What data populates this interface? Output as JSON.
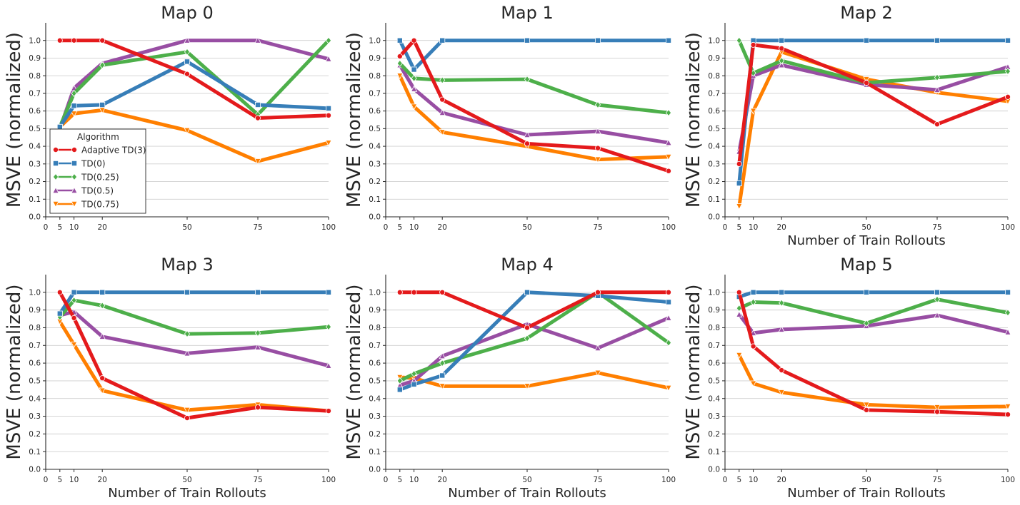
{
  "colors": {
    "Adaptive TD(3)": "#e41a1c",
    "TD(0)": "#377eb8",
    "TD(0.25)": "#4daf4a",
    "TD(0.5)": "#984ea3",
    "TD(0.75)": "#ff7f00"
  },
  "markers": {
    "Adaptive TD(3)": "circle",
    "TD(0)": "square",
    "TD(0.25)": "diamond",
    "TD(0.5)": "triangle-up",
    "TD(0.75)": "triangle-down"
  },
  "legend": {
    "title": "Algorithm",
    "entries": [
      "Adaptive TD(3)",
      "TD(0)",
      "TD(0.25)",
      "TD(0.5)",
      "TD(0.75)"
    ],
    "placement": "lower-left of Map 0"
  },
  "chart_data": [
    {
      "type": "line",
      "title": "Map 0",
      "ylabel": "MSVE (normalized)",
      "xlabel": "",
      "x": [
        5,
        10,
        20,
        50,
        75,
        100
      ],
      "xticks": [
        0,
        5,
        10,
        20,
        50,
        75,
        100
      ],
      "yticks": [
        "0.0",
        "0.1",
        "0.2",
        "0.3",
        "0.4",
        "0.5",
        "0.6",
        "0.7",
        "0.8",
        "0.9",
        "1.0"
      ],
      "xlim": [
        0,
        100
      ],
      "ylim": [
        0,
        1.1
      ],
      "grid": "horizontal",
      "series": [
        {
          "name": "Adaptive TD(3)",
          "values": [
            1.0,
            1.0,
            1.0,
            0.81,
            0.56,
            0.575
          ]
        },
        {
          "name": "TD(0)",
          "values": [
            0.51,
            0.63,
            0.635,
            0.88,
            0.635,
            0.615
          ]
        },
        {
          "name": "TD(0.25)",
          "values": [
            0.51,
            0.7,
            0.86,
            0.935,
            0.58,
            1.0
          ]
        },
        {
          "name": "TD(0.5)",
          "values": [
            0.5,
            0.73,
            0.87,
            1.0,
            1.0,
            0.895
          ]
        },
        {
          "name": "TD(0.75)",
          "values": [
            0.51,
            0.585,
            0.605,
            0.49,
            0.315,
            0.42
          ]
        }
      ]
    },
    {
      "type": "line",
      "title": "Map 1",
      "ylabel": "MSVE (normalized)",
      "xlabel": "",
      "x": [
        5,
        10,
        20,
        50,
        75,
        100
      ],
      "xticks": [
        0,
        5,
        10,
        20,
        50,
        75,
        100
      ],
      "yticks": [
        "0.0",
        "0.1",
        "0.2",
        "0.3",
        "0.4",
        "0.5",
        "0.6",
        "0.7",
        "0.8",
        "0.9",
        "1.0"
      ],
      "xlim": [
        0,
        100
      ],
      "ylim": [
        0,
        1.1
      ],
      "grid": "horizontal",
      "series": [
        {
          "name": "Adaptive TD(3)",
          "values": [
            0.91,
            1.0,
            0.665,
            0.415,
            0.39,
            0.26
          ]
        },
        {
          "name": "TD(0)",
          "values": [
            1.0,
            0.835,
            1.0,
            1.0,
            1.0,
            1.0
          ]
        },
        {
          "name": "TD(0.25)",
          "values": [
            0.87,
            0.785,
            0.775,
            0.78,
            0.635,
            0.59
          ]
        },
        {
          "name": "TD(0.5)",
          "values": [
            0.86,
            0.725,
            0.59,
            0.465,
            0.485,
            0.42
          ]
        },
        {
          "name": "TD(0.75)",
          "values": [
            0.8,
            0.625,
            0.48,
            0.4,
            0.325,
            0.34
          ]
        }
      ]
    },
    {
      "type": "line",
      "title": "Map 2",
      "ylabel": "MSVE (normalized)",
      "xlabel": "Number of Train Rollouts",
      "x": [
        5,
        10,
        20,
        50,
        75,
        100
      ],
      "xticks": [
        0,
        5,
        10,
        20,
        50,
        75,
        100
      ],
      "yticks": [
        "0.0",
        "0.1",
        "0.2",
        "0.3",
        "0.4",
        "0.5",
        "0.6",
        "0.7",
        "0.8",
        "0.9",
        "1.0"
      ],
      "xlim": [
        0,
        100
      ],
      "ylim": [
        0,
        1.1
      ],
      "grid": "horizontal",
      "series": [
        {
          "name": "Adaptive TD(3)",
          "values": [
            0.3,
            0.975,
            0.955,
            0.76,
            0.525,
            0.68
          ]
        },
        {
          "name": "TD(0)",
          "values": [
            0.19,
            1.0,
            1.0,
            1.0,
            1.0,
            1.0
          ]
        },
        {
          "name": "TD(0.25)",
          "values": [
            1.0,
            0.815,
            0.885,
            0.76,
            0.79,
            0.825
          ]
        },
        {
          "name": "TD(0.5)",
          "values": [
            0.37,
            0.8,
            0.86,
            0.75,
            0.72,
            0.85
          ]
        },
        {
          "name": "TD(0.75)",
          "values": [
            0.06,
            0.6,
            0.935,
            0.78,
            0.705,
            0.655
          ]
        }
      ]
    },
    {
      "type": "line",
      "title": "Map 3",
      "ylabel": "MSVE (normalized)",
      "xlabel": "Number of Train Rollouts",
      "x": [
        5,
        10,
        20,
        50,
        75,
        100
      ],
      "xticks": [
        0,
        5,
        10,
        20,
        50,
        75,
        100
      ],
      "yticks": [
        "0.0",
        "0.1",
        "0.2",
        "0.3",
        "0.4",
        "0.5",
        "0.6",
        "0.7",
        "0.8",
        "0.9",
        "1.0"
      ],
      "xlim": [
        0,
        100
      ],
      "ylim": [
        0,
        1.1
      ],
      "grid": "horizontal",
      "series": [
        {
          "name": "Adaptive TD(3)",
          "values": [
            1.0,
            0.855,
            0.515,
            0.29,
            0.35,
            0.33
          ]
        },
        {
          "name": "TD(0)",
          "values": [
            0.88,
            1.0,
            1.0,
            1.0,
            1.0,
            1.0
          ]
        },
        {
          "name": "TD(0.25)",
          "values": [
            0.86,
            0.955,
            0.925,
            0.765,
            0.77,
            0.805
          ]
        },
        {
          "name": "TD(0.5)",
          "values": [
            0.87,
            0.89,
            0.75,
            0.655,
            0.69,
            0.585
          ]
        },
        {
          "name": "TD(0.75)",
          "values": [
            0.835,
            0.705,
            0.445,
            0.335,
            0.365,
            0.33
          ]
        }
      ]
    },
    {
      "type": "line",
      "title": "Map 4",
      "ylabel": "MSVE (normalized)",
      "xlabel": "Number of Train Rollouts",
      "x": [
        5,
        10,
        20,
        50,
        75,
        100
      ],
      "xticks": [
        0,
        5,
        10,
        20,
        50,
        75,
        100
      ],
      "yticks": [
        "0.0",
        "0.1",
        "0.2",
        "0.3",
        "0.4",
        "0.5",
        "0.6",
        "0.7",
        "0.8",
        "0.9",
        "1.0"
      ],
      "xlim": [
        0,
        100
      ],
      "ylim": [
        0,
        1.1
      ],
      "grid": "horizontal",
      "series": [
        {
          "name": "Adaptive TD(3)",
          "values": [
            1.0,
            1.0,
            1.0,
            0.8,
            1.0,
            1.0
          ]
        },
        {
          "name": "TD(0)",
          "values": [
            0.45,
            0.48,
            0.53,
            1.0,
            0.98,
            0.945
          ]
        },
        {
          "name": "TD(0.25)",
          "values": [
            0.5,
            0.54,
            0.6,
            0.74,
            1.0,
            0.715
          ]
        },
        {
          "name": "TD(0.5)",
          "values": [
            0.475,
            0.5,
            0.64,
            0.82,
            0.685,
            0.855
          ]
        },
        {
          "name": "TD(0.75)",
          "values": [
            0.52,
            0.515,
            0.47,
            0.47,
            0.545,
            0.46
          ]
        }
      ]
    },
    {
      "type": "line",
      "title": "Map 5",
      "ylabel": "MSVE (normalized)",
      "xlabel": "Number of Train Rollouts",
      "x": [
        5,
        10,
        20,
        50,
        75,
        100
      ],
      "xticks": [
        0,
        5,
        10,
        20,
        50,
        75,
        100
      ],
      "yticks": [
        "0.0",
        "0.1",
        "0.2",
        "0.3",
        "0.4",
        "0.5",
        "0.6",
        "0.7",
        "0.8",
        "0.9",
        "1.0"
      ],
      "xlim": [
        0,
        100
      ],
      "ylim": [
        0,
        1.1
      ],
      "grid": "horizontal",
      "series": [
        {
          "name": "Adaptive TD(3)",
          "values": [
            1.0,
            0.695,
            0.56,
            0.335,
            0.325,
            0.31
          ]
        },
        {
          "name": "TD(0)",
          "values": [
            0.975,
            1.0,
            1.0,
            1.0,
            1.0,
            1.0
          ]
        },
        {
          "name": "TD(0.25)",
          "values": [
            0.91,
            0.945,
            0.94,
            0.825,
            0.96,
            0.885
          ]
        },
        {
          "name": "TD(0.5)",
          "values": [
            0.875,
            0.77,
            0.79,
            0.81,
            0.87,
            0.775
          ]
        },
        {
          "name": "TD(0.75)",
          "values": [
            0.645,
            0.485,
            0.435,
            0.365,
            0.35,
            0.355
          ]
        }
      ]
    }
  ]
}
